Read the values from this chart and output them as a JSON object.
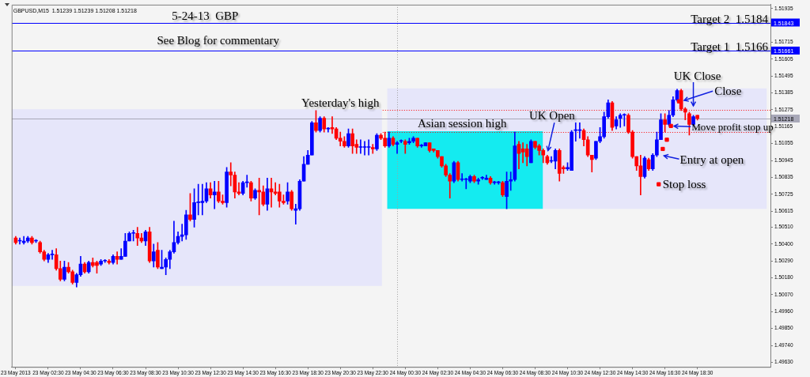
{
  "chart_data": {
    "type": "candlestick",
    "title": "GBPUSD,M15  1.51239 1.51239 1.51208 1.51218",
    "subtitle": "5-24-13  GBP",
    "x": [
      "2013-05-23T00:30",
      "2013-05-23T00:45",
      "2013-05-23T01:00",
      "2013-05-23T01:15",
      "2013-05-23T01:30",
      "2013-05-23T01:45",
      "2013-05-23T02:00",
      "2013-05-23T02:15",
      "2013-05-23T02:30",
      "2013-05-23T02:45",
      "2013-05-23T03:00",
      "2013-05-23T03:15",
      "2013-05-23T03:30",
      "2013-05-23T03:45",
      "2013-05-23T04:00",
      "2013-05-23T04:15",
      "2013-05-23T04:30",
      "2013-05-23T04:45",
      "2013-05-23T05:00",
      "2013-05-23T05:15",
      "2013-05-23T05:30",
      "2013-05-23T05:45",
      "2013-05-23T06:00",
      "2013-05-23T06:15",
      "2013-05-23T06:30",
      "2013-05-23T06:45",
      "2013-05-23T07:00",
      "2013-05-23T07:15",
      "2013-05-23T07:30",
      "2013-05-23T07:45",
      "2013-05-23T08:00",
      "2013-05-23T08:15",
      "2013-05-23T08:30",
      "2013-05-23T08:45",
      "2013-05-23T09:00",
      "2013-05-23T09:15",
      "2013-05-23T09:30",
      "2013-05-23T09:45",
      "2013-05-23T10:00",
      "2013-05-23T10:15",
      "2013-05-23T10:30",
      "2013-05-23T10:45",
      "2013-05-23T11:00",
      "2013-05-23T11:15",
      "2013-05-23T11:30",
      "2013-05-23T11:45",
      "2013-05-23T12:00",
      "2013-05-23T12:15",
      "2013-05-23T12:30",
      "2013-05-23T12:45",
      "2013-05-23T13:00",
      "2013-05-23T13:15",
      "2013-05-23T13:30",
      "2013-05-23T13:45",
      "2013-05-23T14:00",
      "2013-05-23T14:15",
      "2013-05-23T14:30",
      "2013-05-23T14:45",
      "2013-05-23T15:00",
      "2013-05-23T15:15",
      "2013-05-23T15:30",
      "2013-05-23T15:45",
      "2013-05-23T16:00",
      "2013-05-23T16:15",
      "2013-05-23T16:30",
      "2013-05-23T16:45",
      "2013-05-23T17:00",
      "2013-05-23T17:15",
      "2013-05-23T17:30",
      "2013-05-23T17:45",
      "2013-05-23T18:00",
      "2013-05-23T18:15",
      "2013-05-23T18:30",
      "2013-05-23T18:45",
      "2013-05-23T19:00",
      "2013-05-23T19:15",
      "2013-05-23T19:30",
      "2013-05-23T19:45",
      "2013-05-23T20:00",
      "2013-05-23T20:15",
      "2013-05-23T20:30",
      "2013-05-23T20:45",
      "2013-05-23T21:00",
      "2013-05-23T21:15",
      "2013-05-23T21:30",
      "2013-05-23T21:45",
      "2013-05-23T22:00",
      "2013-05-23T22:15",
      "2013-05-23T22:30",
      "2013-05-23T22:45",
      "2013-05-23T23:00",
      "2013-05-23T23:15",
      "2013-05-23T23:30",
      "2013-05-23T23:45",
      "2013-05-24T00:00",
      "2013-05-24T00:15",
      "2013-05-24T00:30",
      "2013-05-24T00:45",
      "2013-05-24T01:00",
      "2013-05-24T01:15",
      "2013-05-24T01:30",
      "2013-05-24T01:45",
      "2013-05-24T02:00",
      "2013-05-24T02:15",
      "2013-05-24T02:30",
      "2013-05-24T02:45",
      "2013-05-24T03:00",
      "2013-05-24T03:15",
      "2013-05-24T03:30",
      "2013-05-24T03:45",
      "2013-05-24T04:00",
      "2013-05-24T04:15",
      "2013-05-24T04:30",
      "2013-05-24T04:45",
      "2013-05-24T05:00",
      "2013-05-24T05:15",
      "2013-05-24T05:30",
      "2013-05-24T05:45",
      "2013-05-24T06:00",
      "2013-05-24T06:15",
      "2013-05-24T06:30",
      "2013-05-24T06:45",
      "2013-05-24T07:00",
      "2013-05-24T07:15",
      "2013-05-24T07:30",
      "2013-05-24T07:45",
      "2013-05-24T08:00",
      "2013-05-24T08:15",
      "2013-05-24T08:30",
      "2013-05-24T08:45",
      "2013-05-24T09:00",
      "2013-05-24T09:15",
      "2013-05-24T09:30",
      "2013-05-24T09:45",
      "2013-05-24T10:00",
      "2013-05-24T10:15",
      "2013-05-24T10:30",
      "2013-05-24T10:45",
      "2013-05-24T11:00",
      "2013-05-24T11:15",
      "2013-05-24T11:30",
      "2013-05-24T11:45",
      "2013-05-24T12:00",
      "2013-05-24T12:15",
      "2013-05-24T12:30",
      "2013-05-24T12:45",
      "2013-05-24T13:00",
      "2013-05-24T13:15",
      "2013-05-24T13:30",
      "2013-05-24T13:45",
      "2013-05-24T14:00",
      "2013-05-24T14:15",
      "2013-05-24T14:30",
      "2013-05-24T14:45",
      "2013-05-24T15:00",
      "2013-05-24T15:15",
      "2013-05-24T15:30",
      "2013-05-24T15:45",
      "2013-05-24T16:00",
      "2013-05-24T16:15",
      "2013-05-24T16:30",
      "2013-05-24T16:45",
      "2013-05-24T17:00",
      "2013-05-24T17:15",
      "2013-05-24T17:30",
      "2013-05-24T17:45",
      "2013-05-24T18:00",
      "2013-05-24T18:15",
      "2013-05-24T18:30"
    ],
    "ohlc": [
      [
        1.5044,
        1.5045,
        1.504,
        1.5041
      ],
      [
        1.5042,
        1.5044,
        1.504,
        1.5042
      ],
      [
        1.5041,
        1.5045,
        1.504,
        1.5042
      ],
      [
        1.5042,
        1.5045,
        1.5041,
        1.5044
      ],
      [
        1.5044,
        1.5045,
        1.504,
        1.5041
      ],
      [
        1.5042,
        1.5043,
        1.5041,
        1.5042
      ],
      [
        1.5041,
        1.5042,
        1.5034,
        1.5035
      ],
      [
        1.5035,
        1.5036,
        1.5029,
        1.503
      ],
      [
        1.503,
        1.5034,
        1.5028,
        1.5033
      ],
      [
        1.5033,
        1.5036,
        1.503,
        1.5033
      ],
      [
        1.5033,
        1.5037,
        1.5023,
        1.5024
      ],
      [
        1.5024,
        1.5029,
        1.5016,
        1.5017
      ],
      [
        1.5017,
        1.5029,
        1.5016,
        1.5025
      ],
      [
        1.5025,
        1.5028,
        1.5021,
        1.5022
      ],
      [
        1.5022,
        1.5023,
        1.5014,
        1.5015
      ],
      [
        1.5015,
        1.5021,
        1.5012,
        1.502
      ],
      [
        1.502,
        1.5032,
        1.5019,
        1.5027
      ],
      [
        1.5027,
        1.5028,
        1.5021,
        1.5022
      ],
      [
        1.5022,
        1.5029,
        1.5021,
        1.5028
      ],
      [
        1.5028,
        1.5031,
        1.5025,
        1.5026
      ],
      [
        1.5028,
        1.5029,
        1.5021,
        1.5026
      ],
      [
        1.5027,
        1.503,
        1.5026,
        1.5029
      ],
      [
        1.5029,
        1.503,
        1.5028,
        1.5029
      ],
      [
        1.5029,
        1.503,
        1.5027,
        1.5028
      ],
      [
        1.5028,
        1.5033,
        1.5027,
        1.5032
      ],
      [
        1.5032,
        1.5035,
        1.5027,
        1.503
      ],
      [
        1.503,
        1.5037,
        1.503,
        1.5032
      ],
      [
        1.5032,
        1.5047,
        1.5032,
        1.5042
      ],
      [
        1.5042,
        1.5048,
        1.5042,
        1.5047
      ],
      [
        1.5047,
        1.5049,
        1.5042,
        1.5047
      ],
      [
        1.5047,
        1.5051,
        1.5039,
        1.5044
      ],
      [
        1.5044,
        1.5047,
        1.5041,
        1.5042
      ],
      [
        1.5042,
        1.5049,
        1.5039,
        1.5048
      ],
      [
        1.5048,
        1.5051,
        1.5028,
        1.5029
      ],
      [
        1.5029,
        1.504,
        1.5025,
        1.5035
      ],
      [
        1.5036,
        1.5041,
        1.5024,
        1.5025
      ],
      [
        1.5024,
        1.5036,
        1.5024,
        1.5025
      ],
      [
        1.5025,
        1.5031,
        1.502,
        1.503
      ],
      [
        1.503,
        1.5036,
        1.5024,
        1.5035
      ],
      [
        1.5035,
        1.5055,
        1.5034,
        1.5041
      ],
      [
        1.5041,
        1.5048,
        1.504,
        1.5045
      ],
      [
        1.5045,
        1.5053,
        1.5042,
        1.5046
      ],
      [
        1.5046,
        1.5062,
        1.5043,
        1.5059
      ],
      [
        1.5059,
        1.5073,
        1.5055,
        1.5056
      ],
      [
        1.5056,
        1.5076,
        1.5051,
        1.5067
      ],
      [
        1.5067,
        1.5079,
        1.5059,
        1.5067
      ],
      [
        1.5067,
        1.5079,
        1.5059,
        1.5068
      ],
      [
        1.5068,
        1.508,
        1.5067,
        1.5076
      ],
      [
        1.5076,
        1.508,
        1.507,
        1.5072
      ],
      [
        1.5072,
        1.5081,
        1.5063,
        1.5074
      ],
      [
        1.5074,
        1.5081,
        1.5067,
        1.5068
      ],
      [
        1.5068,
        1.5072,
        1.5066,
        1.5067
      ],
      [
        1.5067,
        1.509,
        1.5064,
        1.5087
      ],
      [
        1.5087,
        1.5093,
        1.5078,
        1.5085
      ],
      [
        1.5085,
        1.5087,
        1.507,
        1.5074
      ],
      [
        1.5074,
        1.508,
        1.5072,
        1.5073
      ],
      [
        1.5073,
        1.5081,
        1.5072,
        1.508
      ],
      [
        1.508,
        1.5085,
        1.5077,
        1.508
      ],
      [
        1.508,
        1.5081,
        1.5068,
        1.507
      ],
      [
        1.507,
        1.5076,
        1.5069,
        1.5075
      ],
      [
        1.5075,
        1.5083,
        1.5059,
        1.5074
      ],
      [
        1.5074,
        1.5078,
        1.5065,
        1.5066
      ],
      [
        1.5066,
        1.5083,
        1.5062,
        1.5076
      ],
      [
        1.5076,
        1.5083,
        1.5064,
        1.5074
      ],
      [
        1.5074,
        1.508,
        1.5072,
        1.5073
      ],
      [
        1.5074,
        1.5079,
        1.5064,
        1.5068
      ],
      [
        1.5068,
        1.5072,
        1.5066,
        1.5067
      ],
      [
        1.5068,
        1.508,
        1.5066,
        1.5074
      ],
      [
        1.5074,
        1.5075,
        1.5062,
        1.5063
      ],
      [
        1.5062,
        1.5066,
        1.5053,
        1.5063
      ],
      [
        1.5063,
        1.5082,
        1.5062,
        1.5081
      ],
      [
        1.5081,
        1.5097,
        1.5081,
        1.5092
      ],
      [
        1.5092,
        1.5101,
        1.5092,
        1.5098
      ],
      [
        1.5098,
        1.512,
        1.5098,
        1.5119
      ],
      [
        1.5119,
        1.5127,
        1.5113,
        1.5114
      ],
      [
        1.5114,
        1.5123,
        1.5113,
        1.5122
      ],
      [
        1.5122,
        1.5123,
        1.5113,
        1.5115
      ],
      [
        1.5115,
        1.5116,
        1.5113,
        1.5115
      ],
      [
        1.5116,
        1.5123,
        1.5112,
        1.5115
      ],
      [
        1.5115,
        1.5116,
        1.5108,
        1.5109
      ],
      [
        1.5109,
        1.5113,
        1.5104,
        1.5107
      ],
      [
        1.5107,
        1.511,
        1.5103,
        1.5104
      ],
      [
        1.5104,
        1.5115,
        1.5103,
        1.5112
      ],
      [
        1.5112,
        1.5115,
        1.5099,
        1.5104
      ],
      [
        1.5105,
        1.5108,
        1.5099,
        1.5103
      ],
      [
        1.5103,
        1.5108,
        1.5099,
        1.5103
      ],
      [
        1.5103,
        1.5107,
        1.5098,
        1.5103
      ],
      [
        1.5103,
        1.5108,
        1.5098,
        1.5103
      ],
      [
        1.5103,
        1.5105,
        1.5099,
        1.5102
      ],
      [
        1.5102,
        1.5112,
        1.5101,
        1.5111
      ],
      [
        1.5111,
        1.5112,
        1.5108,
        1.5109
      ],
      [
        1.5109,
        1.5113,
        1.5103,
        1.5104
      ],
      [
        1.5104,
        1.5113,
        1.5103,
        1.5109
      ],
      [
        1.5109,
        1.511,
        1.5104,
        1.5105
      ],
      [
        1.5105,
        1.5107,
        1.5099,
        1.5106
      ],
      [
        1.5107,
        1.5108,
        1.5106,
        1.5107
      ],
      [
        1.5107,
        1.5108,
        1.5099,
        1.5105
      ],
      [
        1.5106,
        1.5109,
        1.5105,
        1.5107
      ],
      [
        1.5107,
        1.511,
        1.5106,
        1.5109
      ],
      [
        1.5109,
        1.5109,
        1.5103,
        1.5104
      ],
      [
        1.5104,
        1.5105,
        1.5103,
        1.5104
      ],
      [
        1.5104,
        1.5106,
        1.5104,
        1.5106
      ],
      [
        1.5106,
        1.5106,
        1.51,
        1.5101
      ],
      [
        1.5102,
        1.5102,
        1.51,
        1.5101
      ],
      [
        1.5101,
        1.5101,
        1.5096,
        1.5097
      ],
      [
        1.5097,
        1.5097,
        1.509,
        1.5091
      ],
      [
        1.5091,
        1.5092,
        1.5084,
        1.5085
      ],
      [
        1.5085,
        1.5086,
        1.507,
        1.5081
      ],
      [
        1.5081,
        1.5094,
        1.508,
        1.5093
      ],
      [
        1.5093,
        1.5094,
        1.5081,
        1.5082
      ],
      [
        1.5082,
        1.5086,
        1.5081,
        1.5082
      ],
      [
        1.5082,
        1.5083,
        1.5076,
        1.5082
      ],
      [
        1.5081,
        1.5085,
        1.508,
        1.5084
      ],
      [
        1.5084,
        1.5085,
        1.508,
        1.5081
      ],
      [
        1.5081,
        1.5083,
        1.5079,
        1.5082
      ],
      [
        1.5083,
        1.5084,
        1.5082,
        1.5083
      ],
      [
        1.5082,
        1.5085,
        1.5082,
        1.5083
      ],
      [
        1.5083,
        1.5084,
        1.5079,
        1.508
      ],
      [
        1.508,
        1.5081,
        1.5079,
        1.508
      ],
      [
        1.508,
        1.5081,
        1.5079,
        1.508
      ],
      [
        1.508,
        1.5081,
        1.5071,
        1.5072
      ],
      [
        1.5071,
        1.5087,
        1.5063,
        1.5081
      ],
      [
        1.5081,
        1.5087,
        1.5075,
        1.5082
      ],
      [
        1.5082,
        1.5113,
        1.5081,
        1.5104
      ],
      [
        1.5105,
        1.5107,
        1.5089,
        1.5099
      ],
      [
        1.5102,
        1.5106,
        1.5093,
        1.51
      ],
      [
        1.5102,
        1.5105,
        1.5091,
        1.5097
      ],
      [
        1.5093,
        1.5108,
        1.5093,
        1.5107
      ],
      [
        1.5107,
        1.5107,
        1.5102,
        1.5103
      ],
      [
        1.5104,
        1.5105,
        1.5098,
        1.5101
      ],
      [
        1.5101,
        1.5102,
        1.5093,
        1.5098
      ],
      [
        1.5097,
        1.5098,
        1.5092,
        1.5093
      ],
      [
        1.5094,
        1.5097,
        1.5093,
        1.5094
      ],
      [
        1.5094,
        1.5102,
        1.5089,
        1.5101
      ],
      [
        1.5101,
        1.5102,
        1.5081,
        1.5086
      ],
      [
        1.509,
        1.5091,
        1.5086,
        1.5089
      ],
      [
        1.5089,
        1.5093,
        1.5088,
        1.509
      ],
      [
        1.5088,
        1.5114,
        1.5088,
        1.5113
      ],
      [
        1.5114,
        1.5119,
        1.5107,
        1.5114
      ],
      [
        1.5114,
        1.5119,
        1.5109,
        1.5114
      ],
      [
        1.5114,
        1.5115,
        1.5104,
        1.5108
      ],
      [
        1.5108,
        1.511,
        1.5097,
        1.5098
      ],
      [
        1.5098,
        1.5098,
        1.5087,
        1.5095
      ],
      [
        1.5096,
        1.5107,
        1.5095,
        1.5107
      ],
      [
        1.5107,
        1.5116,
        1.5106,
        1.511
      ],
      [
        1.511,
        1.5126,
        1.5109,
        1.5123
      ],
      [
        1.5123,
        1.5134,
        1.5122,
        1.5132
      ],
      [
        1.5132,
        1.5133,
        1.5114,
        1.5116
      ],
      [
        1.5117,
        1.5123,
        1.5115,
        1.5121
      ],
      [
        1.5122,
        1.5125,
        1.5116,
        1.5124
      ],
      [
        1.5124,
        1.5125,
        1.5117,
        1.5124
      ],
      [
        1.5124,
        1.5125,
        1.5112,
        1.5113
      ],
      [
        1.5113,
        1.5114,
        1.5096,
        1.5097
      ],
      [
        1.5097,
        1.5097,
        1.5088,
        1.5091
      ],
      [
        1.5091,
        1.5098,
        1.5072,
        1.5084
      ],
      [
        1.5084,
        1.5097,
        1.5083,
        1.5096
      ],
      [
        1.5095,
        1.5096,
        1.5088,
        1.5089
      ],
      [
        1.5089,
        1.5099,
        1.5088,
        1.5098
      ],
      [
        1.5098,
        1.5113,
        1.5097,
        1.5108
      ],
      [
        1.5108,
        1.5125,
        1.5108,
        1.5121
      ],
      [
        1.5121,
        1.5125,
        1.5113,
        1.5118
      ],
      [
        1.5118,
        1.5127,
        1.5117,
        1.5124
      ],
      [
        1.5124,
        1.5136,
        1.5123,
        1.5134
      ],
      [
        1.5134,
        1.5141,
        1.5133,
        1.514
      ],
      [
        1.514,
        1.5141,
        1.5127,
        1.5128
      ],
      [
        1.5128,
        1.5129,
        1.5121,
        1.5126
      ],
      [
        1.5125,
        1.5126,
        1.5111,
        1.5118
      ],
      [
        1.5118,
        1.5124,
        1.5117,
        1.5123
      ],
      [
        1.51239,
        1.51239,
        1.51208,
        1.51218
      ]
    ],
    "colors": [
      "#ff0000",
      "#0000ff",
      "#0000ff",
      "#0000ff",
      "#ff0000",
      "#0000ff",
      "#ff0000",
      "#ff0000",
      "#0000ff",
      "#0000ff",
      "#ff0000",
      "#ff0000",
      "#0000ff",
      "#ff0000",
      "#ff0000",
      "#0000ff",
      "#0000ff",
      "#ff0000",
      "#0000ff",
      "#ff0000",
      "#ff0000",
      "#0000ff",
      "#0000ff",
      "#ff0000",
      "#0000ff",
      "#ff0000",
      "#0000ff",
      "#0000ff",
      "#0000ff",
      "#0000ff",
      "#ff0000",
      "#ff0000",
      "#0000ff",
      "#ff0000",
      "#0000ff",
      "#ff0000",
      "#0000ff",
      "#0000ff",
      "#0000ff",
      "#0000ff",
      "#0000ff",
      "#0000ff",
      "#0000ff",
      "#ff0000",
      "#0000ff",
      "#0000ff",
      "#0000ff",
      "#0000ff",
      "#ff0000",
      "#0000ff",
      "#ff0000",
      "#ff0000",
      "#0000ff",
      "#ff0000",
      "#ff0000",
      "#ff0000",
      "#0000ff",
      "#0000ff",
      "#ff0000",
      "#0000ff",
      "#ff0000",
      "#ff0000",
      "#0000ff",
      "#ff0000",
      "#ff0000",
      "#ff0000",
      "#ff0000",
      "#0000ff",
      "#ff0000",
      "#0000ff",
      "#0000ff",
      "#0000ff",
      "#0000ff",
      "#0000ff",
      "#ff0000",
      "#0000ff",
      "#ff0000",
      "#0000ff",
      "#ff0000",
      "#ff0000",
      "#ff0000",
      "#ff0000",
      "#0000ff",
      "#ff0000",
      "#ff0000",
      "#0000ff",
      "#0000ff",
      "#0000ff",
      "#ff0000",
      "#0000ff",
      "#ff0000",
      "#ff0000",
      "#0000ff",
      "#ff0000",
      "#0000ff",
      "#0000ff",
      "#ff0000",
      "#0000ff",
      "#0000ff",
      "#ff0000",
      "#0000ff",
      "#0000ff",
      "#ff0000",
      "#ff0000",
      "#ff0000",
      "#ff0000",
      "#ff0000",
      "#ff0000",
      "#0000ff",
      "#ff0000",
      "#0000ff",
      "#0000ff",
      "#0000ff",
      "#ff0000",
      "#0000ff",
      "#0000ff",
      "#0000ff",
      "#ff0000",
      "#0000ff",
      "#0000ff",
      "#ff0000",
      "#0000ff",
      "#0000ff",
      "#0000ff",
      "#ff0000",
      "#ff0000",
      "#ff0000",
      "#0000ff",
      "#ff0000",
      "#ff0000",
      "#ff0000",
      "#ff0000",
      "#0000ff",
      "#0000ff",
      "#ff0000",
      "#ff0000",
      "#0000ff",
      "#0000ff",
      "#0000ff",
      "#0000ff",
      "#ff0000",
      "#ff0000",
      "#ff0000",
      "#0000ff",
      "#0000ff",
      "#0000ff",
      "#0000ff",
      "#ff0000",
      "#0000ff",
      "#0000ff",
      "#0000ff",
      "#ff0000",
      "#ff0000",
      "#ff0000",
      "#ff0000",
      "#0000ff",
      "#ff0000",
      "#0000ff",
      "#0000ff",
      "#0000ff",
      "#ff0000",
      "#0000ff",
      "#0000ff",
      "#0000ff",
      "#ff0000",
      "#ff0000",
      "#ff0000",
      "#0000ff",
      "#ff0000"
    ],
    "series": [
      {
        "type": "scatter",
        "color": "#ff0000",
        "x": [
          "2013-05-24T16:07",
          "2013-05-24T16:22",
          "2013-05-24T16:37",
          "2013-05-24T16:52",
          "2013-05-24T17:22"
        ],
        "values": [
          1.5079,
          1.5102,
          1.5108,
          1.5117,
          1.5133
        ]
      }
    ],
    "xlim": [
      "2013-05-23T00:15",
      "2013-05-24T23:00"
    ],
    "xticks": [
      {
        "value": "2013-05-23T00:30",
        "label": "23 May 2013"
      },
      {
        "value": "2013-05-23T02:30",
        "label": "23 May 02:30"
      },
      {
        "value": "2013-05-23T04:30",
        "label": "23 May 04:30"
      },
      {
        "value": "2013-05-23T06:30",
        "label": "23 May 06:30"
      },
      {
        "value": "2013-05-23T08:30",
        "label": "23 May 08:30"
      },
      {
        "value": "2013-05-23T10:30",
        "label": "23 May 10:30"
      },
      {
        "value": "2013-05-23T12:30",
        "label": "23 May 12:30"
      },
      {
        "value": "2013-05-23T14:30",
        "label": "23 May 14:30"
      },
      {
        "value": "2013-05-23T16:30",
        "label": "23 May 16:30"
      },
      {
        "value": "2013-05-23T18:30",
        "label": "23 May 18:30"
      },
      {
        "value": "2013-05-23T20:30",
        "label": "23 May 20:30"
      },
      {
        "value": "2013-05-23T22:30",
        "label": "23 May 22:30"
      },
      {
        "value": "2013-05-24T00:30",
        "label": "24 May 00:30"
      },
      {
        "value": "2013-05-24T02:30",
        "label": "24 May 02:30"
      },
      {
        "value": "2013-05-24T04:30",
        "label": "24 May 04:30"
      },
      {
        "value": "2013-05-24T06:30",
        "label": "24 May 06:30"
      },
      {
        "value": "2013-05-24T08:30",
        "label": "24 May 08:30"
      },
      {
        "value": "2013-05-24T10:30",
        "label": "24 May 10:30"
      },
      {
        "value": "2013-05-24T12:30",
        "label": "24 May 12:30"
      },
      {
        "value": "2013-05-24T14:30",
        "label": "24 May 14:30"
      },
      {
        "value": "2013-05-24T16:30",
        "label": "24 May 16:30"
      },
      {
        "value": "2013-05-24T18:30",
        "label": "24 May 18:30"
      }
    ],
    "ylim": [
      1.496,
      1.5196
    ],
    "yticks": [
      1.51935,
      1.51715,
      1.51605,
      1.51495,
      1.51385,
      1.51275,
      1.51165,
      1.51055,
      1.50945,
      1.50835,
      1.50725,
      1.50615,
      {
        "value": 1.5051,
        "label": "1.50510"
      },
      {
        "value": 1.504,
        "label": "1.50400"
      },
      {
        "value": 1.5029,
        "label": "1.50290"
      },
      {
        "value": 1.5018,
        "label": "1.50180"
      },
      {
        "value": 1.5007,
        "label": "1.50070"
      },
      {
        "value": 1.4996,
        "label": "1.49960"
      },
      {
        "value": 1.4985,
        "label": "1.49850"
      },
      {
        "value": 1.4974,
        "label": "1.49740"
      },
      {
        "value": 1.4963,
        "label": "1.49630"
      }
    ],
    "bands": [
      {
        "axis": "y",
        "from": 1.50127,
        "to": 1.51278,
        "color": "#e6e6fa"
      },
      {
        "axis": "y",
        "from": 1.50629,
        "to": 1.51415,
        "color": "#e6e6fa"
      },
      {
        "axis": "y",
        "from": 1.50629,
        "to": 1.51136,
        "color": "#14ebf0"
      }
    ],
    "ref_lines": [
      {
        "axis": "y",
        "value": 1.51843,
        "label": "1.51843",
        "color": "#0000ff",
        "line_style": "solid"
      },
      {
        "axis": "y",
        "value": 1.51661,
        "label": "1.51661",
        "color": "#0000ff",
        "line_style": "solid"
      },
      {
        "axis": "y",
        "value": 1.51218,
        "label": "1.51218",
        "color": "#a8a8b8",
        "line_style": "solid"
      },
      {
        "axis": "y",
        "value": 1.51275,
        "label": null,
        "color": "#ff0000",
        "line_style": "dotted"
      },
      {
        "axis": "y",
        "value": 1.51131,
        "label": null,
        "color": "#ff0000",
        "line_style": "dotted"
      },
      {
        "axis": "x",
        "value": "2013-05-24T00:00",
        "label": null,
        "color": "#a0a0a0",
        "line_style": "dotted"
      }
    ],
    "annotations": [
      "See Blog for commentary",
      "Target 2  1.5184",
      "Target 1  1.5166",
      {
        "text": "Yesterday's high",
        "x": "2013-05-23T20:30",
        "y": 1.5128
      },
      {
        "text": "Asian session high",
        "x": "2013-05-24T04:00",
        "y": 1.5114
      },
      {
        "text": "UK Open",
        "x": "2013-05-24T09:15",
        "y": 1.5099
      },
      {
        "text": "UK Close",
        "x": "2013-05-24T18:15",
        "y": 1.5128
      },
      {
        "text": "Close",
        "x": "2013-05-24T17:30",
        "y": 1.5133
      },
      {
        "text": "Move profit stop up",
        "x": "2013-05-24T16:52",
        "y": 1.5117
      },
      {
        "text": "Entry at open",
        "x": "2013-05-24T16:15",
        "y": 1.5098
      },
      {
        "text": "Stop loss",
        "x": "2013-05-24T16:07",
        "y": 1.5079
      }
    ]
  }
}
